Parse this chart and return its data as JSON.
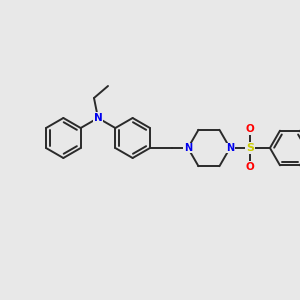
{
  "background_color": "#e8e8e8",
  "bond_color": "#2a2a2a",
  "nitrogen_color": "#0000ee",
  "oxygen_color": "#ff0000",
  "sulfur_color": "#cccc00",
  "line_width": 1.4,
  "figsize": [
    3.0,
    3.0
  ],
  "dpi": 100,
  "xlim": [
    0,
    300
  ],
  "ylim": [
    0,
    300
  ]
}
